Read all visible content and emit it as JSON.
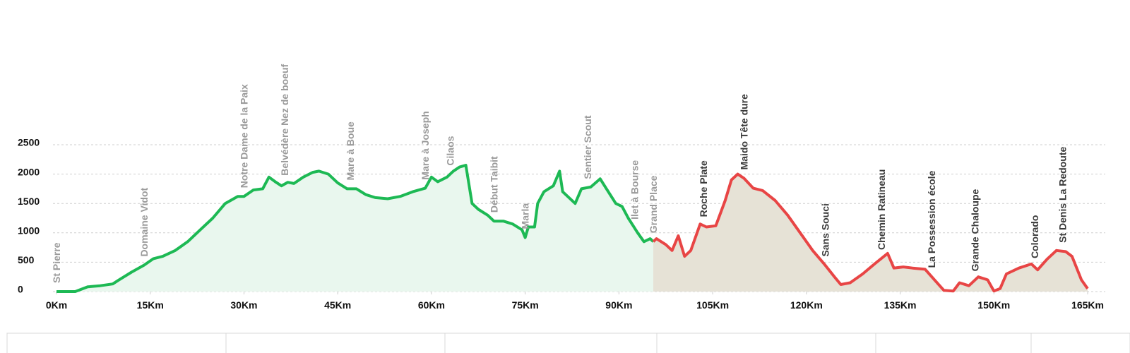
{
  "chart_data": {
    "type": "area",
    "xlim": [
      0,
      165
    ],
    "ylim": [
      0,
      2500
    ],
    "xticks": [
      {
        "value": 0,
        "label": "0Km"
      },
      {
        "value": 15,
        "label": "15Km"
      },
      {
        "value": 30,
        "label": "30Km"
      },
      {
        "value": 45,
        "label": "45Km"
      },
      {
        "value": 60,
        "label": "60Km"
      },
      {
        "value": 75,
        "label": "75Km"
      },
      {
        "value": 90,
        "label": "90Km"
      },
      {
        "value": 105,
        "label": "105Km"
      },
      {
        "value": 120,
        "label": "120Km"
      },
      {
        "value": 135,
        "label": "135Km"
      },
      {
        "value": 150,
        "label": "150Km"
      },
      {
        "value": 165,
        "label": "165Km"
      }
    ],
    "yticks": [
      0,
      500,
      1000,
      1500,
      2000,
      2500
    ],
    "grid": true,
    "series": [
      {
        "color": "#1db954",
        "fill": "#e9f7ee",
        "x": [
          0,
          3,
          5,
          7,
          9,
          10,
          12,
          14,
          15.5,
          17,
          19,
          21,
          23,
          25,
          27,
          29,
          30,
          31.5,
          33,
          34,
          35,
          36,
          37,
          38,
          39.5,
          41,
          42,
          43.5,
          45,
          46.5,
          48,
          49.5,
          51,
          53,
          55,
          57,
          59,
          60,
          61,
          62.5,
          63.5,
          64.5,
          65.5,
          66.5,
          67.5,
          69,
          70,
          71.5,
          73,
          74.5,
          75,
          75.5,
          76.5,
          77,
          78,
          79.5,
          80.5,
          81,
          83,
          84,
          85.5,
          87,
          88,
          89.5,
          90.5,
          91.5,
          93,
          94,
          95,
          95.5
        ],
        "values": [
          0,
          0,
          80,
          100,
          130,
          200,
          330,
          450,
          560,
          600,
          700,
          850,
          1050,
          1250,
          1500,
          1620,
          1620,
          1730,
          1750,
          1950,
          1870,
          1800,
          1860,
          1840,
          1950,
          2030,
          2050,
          2000,
          1850,
          1750,
          1750,
          1650,
          1600,
          1580,
          1620,
          1700,
          1760,
          1950,
          1870,
          1950,
          2050,
          2120,
          2150,
          1500,
          1400,
          1300,
          1200,
          1200,
          1150,
          1050,
          920,
          1100,
          1100,
          1500,
          1700,
          1800,
          2050,
          1700,
          1500,
          1750,
          1780,
          1920,
          1750,
          1500,
          1450,
          1250,
          1000,
          850,
          900,
          850
        ]
      },
      {
        "color": "#e84545",
        "fill": "#e6e2d6",
        "x": [
          95.5,
          96,
          97.5,
          98.5,
          99.5,
          100.5,
          101.5,
          103,
          104,
          105.5,
          107,
          108,
          109,
          110,
          111.5,
          113,
          115,
          117,
          119,
          121,
          123,
          124.5,
          125.5,
          127,
          129,
          131,
          133,
          134,
          135.5,
          137,
          139,
          140.5,
          142,
          143.5,
          144.5,
          146,
          147.5,
          149,
          150,
          151,
          152,
          154,
          156,
          157,
          158.5,
          160,
          161.5,
          162.5,
          164,
          165
        ],
        "values": [
          850,
          900,
          800,
          700,
          950,
          600,
          700,
          1150,
          1100,
          1120,
          1550,
          1900,
          2000,
          1930,
          1760,
          1720,
          1550,
          1300,
          1000,
          700,
          450,
          250,
          120,
          150,
          300,
          480,
          650,
          400,
          420,
          400,
          380,
          200,
          20,
          10,
          150,
          100,
          250,
          200,
          10,
          50,
          300,
          400,
          470,
          370,
          550,
          700,
          680,
          600,
          200,
          50
        ]
      }
    ],
    "annotations": [
      {
        "text": "St Pierre",
        "x": 0,
        "color": "#9a9a9a"
      },
      {
        "text": "Domaine Vidot",
        "x": 14,
        "color": "#9a9a9a"
      },
      {
        "text": "Notre Dame de la Paix",
        "x": 30,
        "color": "#9a9a9a"
      },
      {
        "text": "Belvédère Nez de boeuf",
        "x": 36.5,
        "color": "#9a9a9a"
      },
      {
        "text": "Mare à Boue",
        "x": 47,
        "color": "#9a9a9a"
      },
      {
        "text": "Mare à Joseph",
        "x": 59,
        "color": "#9a9a9a"
      },
      {
        "text": "Cilaos",
        "x": 63,
        "color": "#9a9a9a"
      },
      {
        "text": "Début Taibit",
        "x": 70,
        "color": "#9a9a9a"
      },
      {
        "text": "Marla",
        "x": 75,
        "color": "#9a9a9a"
      },
      {
        "text": "Sentier Scout",
        "x": 85,
        "color": "#9a9a9a"
      },
      {
        "text": "Ilet à Bourse",
        "x": 92.5,
        "color": "#9a9a9a"
      },
      {
        "text": "Grand Place",
        "x": 95.5,
        "color": "#9a9a9a"
      },
      {
        "text": "Roche Plate",
        "x": 103.5,
        "color": "#3a3a3a"
      },
      {
        "text": "Maido Tête dure",
        "x": 110,
        "color": "#3a3a3a"
      },
      {
        "text": "Sans Souci",
        "x": 123,
        "color": "#3a3a3a"
      },
      {
        "text": "Chemin Ratineau",
        "x": 132,
        "color": "#3a3a3a"
      },
      {
        "text": "La Possession école",
        "x": 140,
        "color": "#3a3a3a"
      },
      {
        "text": "Grande Chaloupe",
        "x": 147,
        "color": "#3a3a3a"
      },
      {
        "text": "Colorado",
        "x": 156.5,
        "color": "#3a3a3a"
      },
      {
        "text": "St Denis La Redoute",
        "x": 161,
        "color": "#3a3a3a"
      }
    ]
  }
}
